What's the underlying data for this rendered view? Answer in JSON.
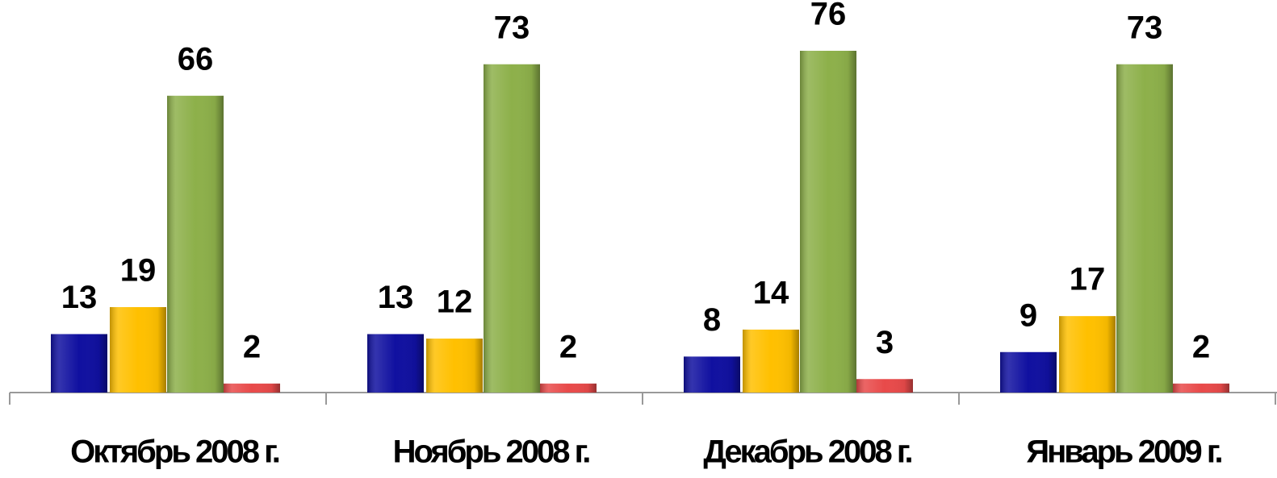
{
  "chart_data": {
    "type": "bar",
    "categories": [
      "Октябрь 2008 г.",
      "Ноябрь 2008 г.",
      "Декабрь 2008 г.",
      "Январь 2009 г."
    ],
    "series": [
      {
        "color": "#1010a0",
        "values": [
          13,
          13,
          8,
          9
        ]
      },
      {
        "color": "#ffc000",
        "values": [
          19,
          12,
          14,
          17
        ]
      },
      {
        "color": "#8db04a",
        "values": [
          66,
          73,
          76,
          73
        ]
      },
      {
        "color": "#e84a4a",
        "values": [
          2,
          2,
          3,
          2
        ]
      }
    ]
  }
}
